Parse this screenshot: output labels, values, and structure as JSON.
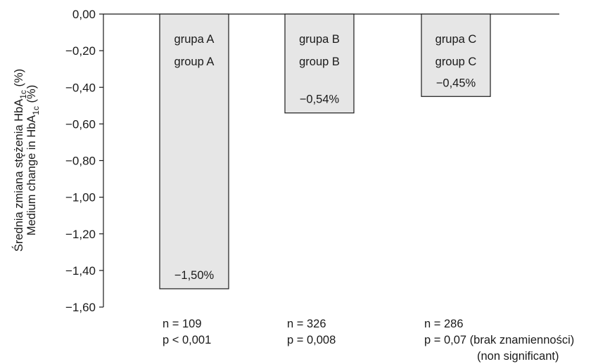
{
  "chart_data": {
    "type": "bar",
    "ylabel_pl": [
      "Średnia zmiana stężenia HbA",
      "1c",
      " (%)"
    ],
    "ylabel_en": [
      "Medium change in HbA",
      "1c",
      " (%)"
    ],
    "ylim": [
      -1.6,
      0.0
    ],
    "yticks": [
      0.0,
      -0.2,
      -0.4,
      -0.6,
      -0.8,
      -1.0,
      -1.2,
      -1.4,
      -1.6
    ],
    "ytick_labels": [
      "0,00",
      "−0,20",
      "−0,40",
      "−0,60",
      "−0,80",
      "−1,00",
      "−1,20",
      "−1,40",
      "−1,60"
    ],
    "bar_color": "#e6e6e6",
    "bars": [
      {
        "name_pl": "grupa A",
        "name_en": "group A",
        "value": -1.5,
        "value_label": "−1,50%",
        "stats": [
          "n = 109",
          "p < 0,001"
        ]
      },
      {
        "name_pl": "grupa B",
        "name_en": "group B",
        "value": -0.54,
        "value_label": "−0,54%",
        "stats": [
          "n = 326",
          "p = 0,008"
        ]
      },
      {
        "name_pl": "grupa C",
        "name_en": "group C",
        "value": -0.45,
        "value_label": "−0,45%",
        "stats": [
          "n = 286",
          "p = 0,07 (brak znamienności)",
          "(non significant)"
        ]
      }
    ]
  }
}
